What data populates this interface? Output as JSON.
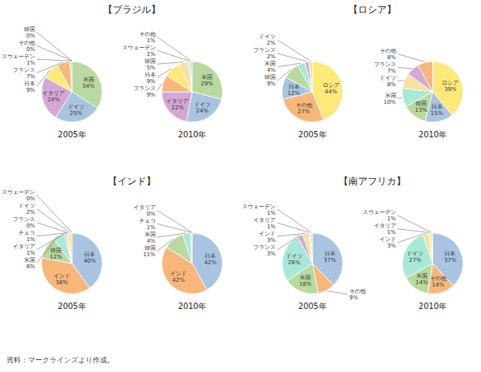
{
  "chart_data": [
    {
      "type": "pie",
      "title": "2005年",
      "categories": [
        "米国",
        "ドイツ",
        "イタリア",
        "日本",
        "フランス",
        "スウェーデン",
        "韓国",
        "その他"
      ],
      "values": [
        34,
        25,
        24,
        9,
        7,
        1,
        0,
        0
      ],
      "value_labels": [
        "34%",
        "25%",
        "24%",
        "9%",
        "7%",
        "1%",
        "0%",
        "0%"
      ],
      "colors": [
        "#b8d9a0",
        "#a8c4e0",
        "#d4a8d4",
        "#fce97a",
        "#f7b77b",
        "#a8e8d8",
        "#f7e0a0",
        "#d0d0d0"
      ],
      "data_labels": true
    },
    {
      "type": "pie",
      "title": "2010年",
      "categories": [
        "米国",
        "ドイツ",
        "イタリア",
        "フランス",
        "日本",
        "韓国",
        "スウェーデン",
        "その他"
      ],
      "values": [
        29,
        24,
        22,
        9,
        9,
        5,
        1,
        1
      ],
      "value_labels": [
        "29%",
        "24%",
        "22%",
        "9%",
        "9%",
        "5%",
        "1%",
        "1%"
      ],
      "colors": [
        "#b8d9a0",
        "#a8c4e0",
        "#d4a8d4",
        "#f7b77b",
        "#fce97a",
        "#f7e0a0",
        "#a8e8d8",
        "#d0d0d0"
      ],
      "data_labels": true
    },
    {
      "type": "pie",
      "title": "2005年",
      "categories": [
        "ロシア",
        "その他",
        "日本",
        "韓国",
        "米国",
        "フランス",
        "ドイツ"
      ],
      "values": [
        44,
        27,
        12,
        9,
        4,
        2,
        2
      ],
      "value_labels": [
        "44%",
        "27%",
        "12%",
        "9%",
        "4%",
        "2%",
        "2%"
      ],
      "colors": [
        "#fce97a",
        "#f7b77b",
        "#a8c4e0",
        "#b8d9a0",
        "#a8e8d8",
        "#d4a8d4",
        "#f7e0a0"
      ],
      "data_labels": true
    },
    {
      "type": "pie",
      "title": "2010年",
      "categories": [
        "ロシア",
        "日本",
        "韓国",
        "米国",
        "ドイツ",
        "フランス",
        "その他"
      ],
      "values": [
        39,
        15,
        13,
        10,
        8,
        7,
        8
      ],
      "value_labels": [
        "39%",
        "15%",
        "13%",
        "10%",
        "8%",
        "7%",
        "8%"
      ],
      "colors": [
        "#fce97a",
        "#a8c4e0",
        "#b8d9a0",
        "#a8e8d8",
        "#f7e0a0",
        "#d4a8d4",
        "#f7b77b"
      ],
      "data_labels": true
    },
    {
      "type": "pie",
      "title": "2005年",
      "categories": [
        "日本",
        "インド",
        "韓国",
        "米国",
        "イタリア",
        "チェコ",
        "フランス",
        "ドイツ",
        "スウェーデン"
      ],
      "values": [
        40,
        38,
        12,
        6,
        1,
        1,
        0,
        2,
        0
      ],
      "value_labels": [
        "40%",
        "38%",
        "12%",
        "6%",
        "1%",
        "1%",
        "0%",
        "2%",
        "0%"
      ],
      "colors": [
        "#a8c4e0",
        "#f7b77b",
        "#b8d9a0",
        "#a8e8d8",
        "#d4a8d4",
        "#f7e0a0",
        "#e8e8e8",
        "#fce97a",
        "#c8e8c8"
      ],
      "data_labels": true
    },
    {
      "type": "pie",
      "title": "2010年",
      "categories": [
        "日本",
        "インド",
        "韓国",
        "米国",
        "チェコ",
        "イタリア"
      ],
      "values": [
        42,
        42,
        11,
        4,
        1,
        0
      ],
      "value_labels": [
        "42%",
        "42%",
        "11%",
        "4%",
        "1%",
        "0%"
      ],
      "colors": [
        "#a8c4e0",
        "#f7b77b",
        "#b8d9a0",
        "#a8e8d8",
        "#f7e0a0",
        "#d4a8d4"
      ],
      "data_labels": true
    },
    {
      "type": "pie",
      "title": "2005年",
      "categories": [
        "日本",
        "その他",
        "米国",
        "ドイツ",
        "フランス",
        "インド",
        "イタリア",
        "スウェーデン"
      ],
      "values": [
        37,
        9,
        18,
        26,
        3,
        3,
        1,
        1
      ],
      "value_labels": [
        "37%",
        "9%",
        "18%",
        "26%",
        "3%",
        "3%",
        "1%",
        "1%"
      ],
      "colors": [
        "#a8c4e0",
        "#f7b77b",
        "#b8d9a0",
        "#a8e8d8",
        "#d4a8d4",
        "#f7e0a0",
        "#fce97a",
        "#c8e8c8"
      ],
      "data_labels": true
    },
    {
      "type": "pie",
      "title": "2010年",
      "categories": [
        "日本",
        "その他",
        "米国",
        "ドイツ",
        "インド",
        "イタリア",
        "スウェーデン"
      ],
      "values": [
        37,
        14,
        14,
        27,
        3,
        1,
        1
      ],
      "value_labels": [
        "37%",
        "14%",
        "14%",
        "27%",
        "3%",
        "1%",
        "1%"
      ],
      "colors": [
        "#a8c4e0",
        "#f7b77b",
        "#b8d9a0",
        "#a8e8d8",
        "#f7e0a0",
        "#fce97a",
        "#c8e8c8"
      ],
      "data_labels": true
    }
  ],
  "annotations": [
    "【ブラジル】",
    "【ロシア】",
    "【インド】",
    "【南アフリカ】",
    "資料：マークラインズより作成。"
  ]
}
